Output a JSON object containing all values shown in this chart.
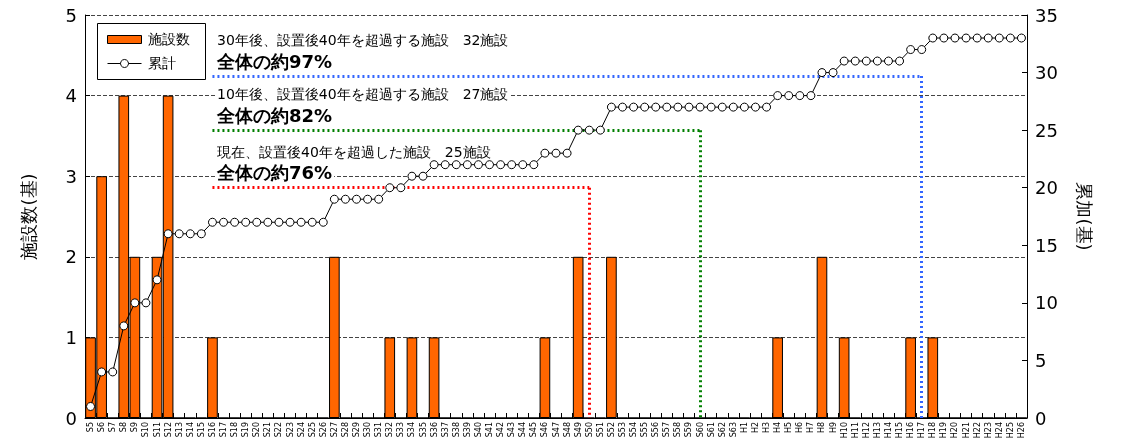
{
  "chart_data": {
    "type": "bar",
    "categories": [
      "S5",
      "S6",
      "S7",
      "S8",
      "S9",
      "S10",
      "S11",
      "S12",
      "S13",
      "S14",
      "S15",
      "S16",
      "S17",
      "S18",
      "S19",
      "S20",
      "S21",
      "S22",
      "S23",
      "S24",
      "S25",
      "S26",
      "S27",
      "S28",
      "S29",
      "S30",
      "S31",
      "S32",
      "S33",
      "S34",
      "S35",
      "S36",
      "S37",
      "S38",
      "S39",
      "S40",
      "S41",
      "S42",
      "S43",
      "S44",
      "S45",
      "S46",
      "S47",
      "S48",
      "S49",
      "S50",
      "S51",
      "S52",
      "S53",
      "S54",
      "S55",
      "S56",
      "S57",
      "S58",
      "S59",
      "S60",
      "S61",
      "S62",
      "S63",
      "H1",
      "H2",
      "H3",
      "H4",
      "H5",
      "H6",
      "H7",
      "H8",
      "H9",
      "H10",
      "H11",
      "H12",
      "H13",
      "H14",
      "H15",
      "H16",
      "H17",
      "H18",
      "H19",
      "H20",
      "H21",
      "H22",
      "H23",
      "H24",
      "H25",
      "H26"
    ],
    "series": [
      {
        "name": "施設数",
        "color": "#ff6600",
        "values": [
          1,
          3,
          0,
          4,
          2,
          0,
          2,
          4,
          0,
          0,
          0,
          1,
          0,
          0,
          0,
          0,
          0,
          0,
          0,
          0,
          0,
          0,
          2,
          0,
          0,
          0,
          0,
          1,
          0,
          1,
          0,
          1,
          0,
          0,
          0,
          0,
          0,
          0,
          0,
          0,
          0,
          1,
          0,
          0,
          2,
          0,
          0,
          2,
          0,
          0,
          0,
          0,
          0,
          0,
          0,
          0,
          0,
          0,
          0,
          0,
          0,
          0,
          1,
          0,
          0,
          0,
          2,
          0,
          1,
          0,
          0,
          0,
          0,
          0,
          1,
          0,
          1,
          0,
          0,
          0,
          0,
          0,
          0,
          0,
          0
        ]
      },
      {
        "name": "累計",
        "type": "line",
        "axis": "y2",
        "color": "#000000",
        "marker": "circle",
        "values": [
          1,
          4,
          4,
          8,
          10,
          10,
          12,
          16,
          16,
          16,
          16,
          17,
          17,
          17,
          17,
          17,
          17,
          17,
          17,
          17,
          17,
          17,
          19,
          19,
          19,
          19,
          19,
          20,
          20,
          21,
          21,
          22,
          22,
          22,
          22,
          22,
          22,
          22,
          22,
          22,
          22,
          23,
          23,
          23,
          25,
          25,
          25,
          27,
          27,
          27,
          27,
          27,
          27,
          27,
          27,
          27,
          27,
          27,
          27,
          27,
          27,
          27,
          28,
          28,
          28,
          28,
          30,
          30,
          31,
          31,
          31,
          31,
          31,
          31,
          32,
          32,
          33,
          33,
          33,
          33,
          33,
          33,
          33,
          33,
          33
        ]
      }
    ],
    "ylabel": "施設数(基)",
    "y2label": "累加(基)",
    "ylim": [
      0,
      5
    ],
    "yticks": [
      0,
      1,
      2,
      3,
      4,
      5
    ],
    "y2lim": [
      0,
      35
    ],
    "y2ticks": [
      0,
      5,
      10,
      15,
      20,
      25,
      30,
      35
    ],
    "grid": "y",
    "legend": "top left",
    "ref_lines": [
      {
        "axis": "y2",
        "value": 29.7,
        "color": "#3366ff",
        "line_style": "dotted"
      },
      {
        "axis": "x",
        "value": "H17",
        "color": "#3366ff",
        "line_style": "dotted"
      },
      {
        "axis": "y2",
        "value": 25,
        "color": "#008000",
        "line_style": "dotted"
      },
      {
        "axis": "x",
        "value": "S60",
        "color": "#008000",
        "line_style": "dotted"
      },
      {
        "axis": "y2",
        "value": 20,
        "color": "#ff0000",
        "line_style": "dotted"
      },
      {
        "axis": "x",
        "value": "S50",
        "color": "#ff0000",
        "line_style": "dotted"
      }
    ],
    "annotations": [
      "30年後、設置後40年を超過する施設　32施設",
      "全体の約97%",
      "10年後、設置後40年を超過する施設　27施設",
      "全体の約82%",
      "現在、設置後40年を超過した施設　25施設",
      "全体の約76%"
    ]
  }
}
